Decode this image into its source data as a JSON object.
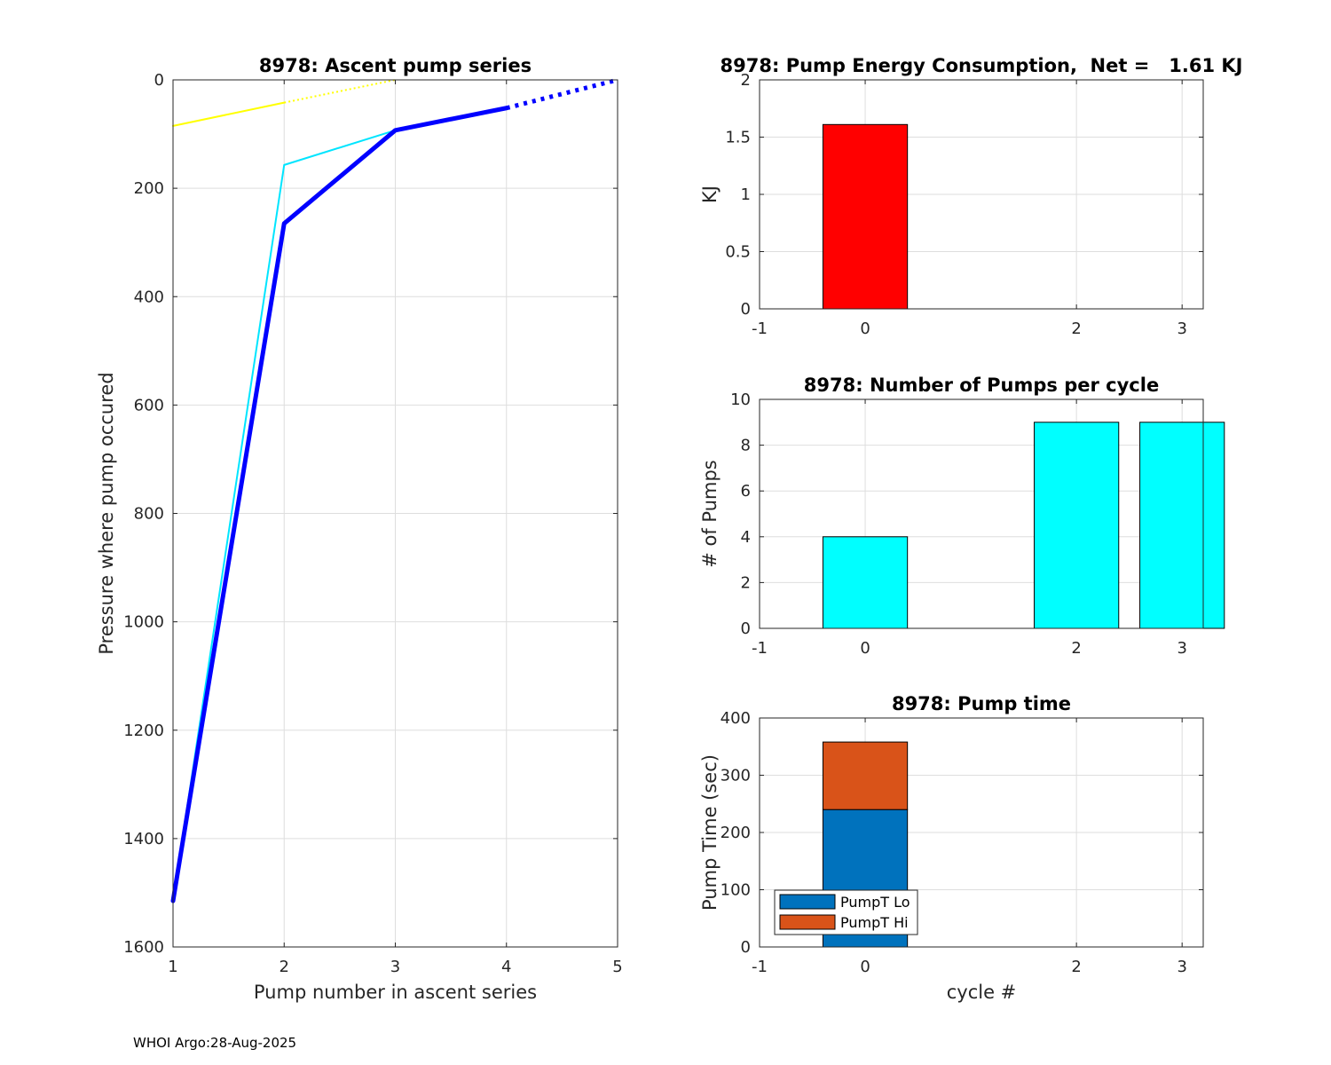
{
  "footer": "WHOI Argo:28-Aug-2025",
  "chart_data": [
    {
      "type": "line",
      "title": "8978: Ascent pump series",
      "xlabel": "Pump number in ascent series",
      "ylabel": "Pressure where pump occured",
      "xlim": [
        1,
        5
      ],
      "ylim": [
        0,
        1600
      ],
      "y_reversed": true,
      "xticks": [
        "1",
        "2",
        "3",
        "4",
        "5"
      ],
      "yticks": [
        "0",
        "200",
        "400",
        "600",
        "800",
        "1000",
        "1200",
        "1400",
        "1600"
      ],
      "grid": true,
      "series": [
        {
          "color": "#ffff00",
          "style": "solid",
          "x": [
            1,
            2
          ],
          "y": [
            85,
            42
          ]
        },
        {
          "color": "#ffff00",
          "style": "dotted",
          "x": [
            2,
            3
          ],
          "y": [
            42,
            0
          ]
        },
        {
          "color": "#00e5ff",
          "style": "solid",
          "x": [
            1,
            2,
            3
          ],
          "y": [
            1515,
            157,
            93
          ]
        },
        {
          "color": "#0000ff",
          "style": "solid-thick",
          "x": [
            1,
            2,
            3,
            4
          ],
          "y": [
            1515,
            265,
            93,
            52
          ]
        },
        {
          "color": "#0000ff",
          "style": "dotted-thick",
          "x": [
            4,
            5
          ],
          "y": [
            52,
            0
          ]
        }
      ]
    },
    {
      "type": "bar",
      "title": "8978: Pump Energy Consumption,  Net =   1.61 KJ",
      "xlabel": "",
      "ylabel": "KJ",
      "xlim": [
        -1,
        3.2
      ],
      "ylim": [
        0,
        2
      ],
      "xticks": [
        "-1",
        "0",
        "2",
        "3"
      ],
      "yticks": [
        "0",
        "0.5",
        "1",
        "1.5",
        "2"
      ],
      "grid": true,
      "color": "#ff0000",
      "x": [
        0
      ],
      "values": [
        1.61
      ]
    },
    {
      "type": "bar",
      "title": "8978: Number of Pumps per cycle",
      "xlabel": "",
      "ylabel": "# of Pumps",
      "xlim": [
        -1,
        3.2
      ],
      "ylim": [
        0,
        10
      ],
      "xticks": [
        "-1",
        "0",
        "2",
        "3"
      ],
      "yticks": [
        "0",
        "2",
        "4",
        "6",
        "8",
        "10"
      ],
      "grid": true,
      "color": "#00ffff",
      "x": [
        0,
        2,
        3
      ],
      "values": [
        4,
        9,
        9
      ]
    },
    {
      "type": "bar",
      "stacked": true,
      "title": "8978: Pump time",
      "xlabel": "cycle #",
      "ylabel": "Pump Time (sec)",
      "xlim": [
        -1,
        3.2
      ],
      "ylim": [
        0,
        400
      ],
      "xticks": [
        "-1",
        "0",
        "2",
        "3"
      ],
      "yticks": [
        "0",
        "100",
        "200",
        "300",
        "400"
      ],
      "grid": true,
      "legend": "bottom-left",
      "x": [
        0
      ],
      "series": [
        {
          "name": "PumpT Lo",
          "color": "#0072bd",
          "values": [
            240
          ]
        },
        {
          "name": "PumpT Hi",
          "color": "#d95319",
          "values": [
            118
          ]
        }
      ]
    }
  ]
}
